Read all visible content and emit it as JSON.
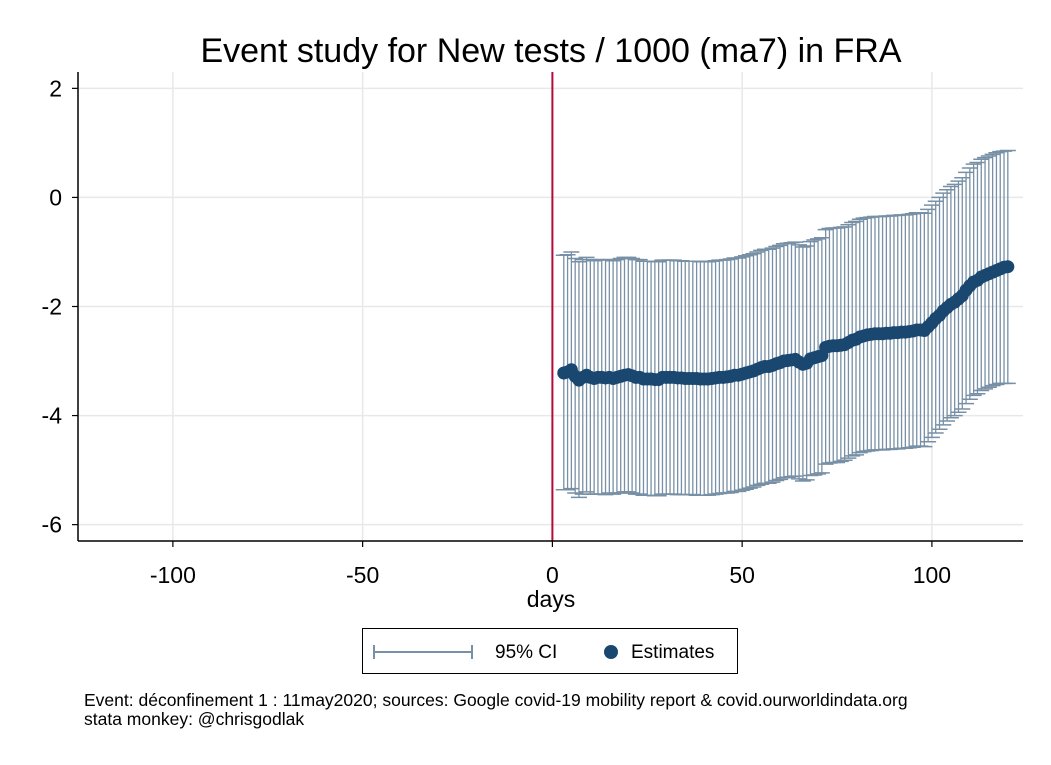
{
  "chart_data": {
    "type": "scatter",
    "title": "Event study for New tests / 1000 (ma7) in FRA",
    "xlabel": "days",
    "ylabel": "",
    "xlim": [
      -125,
      124
    ],
    "ylim": [
      -6.3,
      2.3
    ],
    "xticks": [
      -100,
      -50,
      0,
      50,
      100
    ],
    "yticks": [
      2,
      0,
      -2,
      -4,
      -6
    ],
    "grid": true,
    "event_line_x": 0,
    "event_line_color": "#b5093b",
    "series_colors": {
      "ci": "#7890a6",
      "estimates": "#1a476f"
    },
    "legend": {
      "position": "bottom",
      "entries": [
        "95% CI",
        "Estimates"
      ]
    },
    "series": [
      {
        "name": "Estimates",
        "x": [
          3,
          4,
          5,
          6,
          7,
          8,
          9,
          10,
          11,
          12,
          13,
          14,
          15,
          16,
          17,
          18,
          19,
          20,
          21,
          22,
          23,
          24,
          25,
          26,
          27,
          28,
          29,
          30,
          31,
          32,
          33,
          34,
          35,
          36,
          37,
          38,
          39,
          40,
          41,
          42,
          43,
          44,
          45,
          46,
          47,
          48,
          49,
          50,
          51,
          52,
          53,
          54,
          55,
          56,
          57,
          58,
          59,
          60,
          61,
          62,
          63,
          64,
          65,
          66,
          67,
          68,
          69,
          70,
          71,
          72,
          73,
          74,
          75,
          76,
          77,
          78,
          79,
          80,
          81,
          82,
          83,
          84,
          85,
          86,
          87,
          88,
          89,
          90,
          91,
          92,
          93,
          94,
          95,
          96,
          97,
          98,
          99,
          100,
          101,
          102,
          103,
          104,
          105,
          106,
          107,
          108,
          109,
          110,
          111,
          112,
          113,
          114,
          115,
          116,
          117,
          118,
          119,
          120
        ],
        "y": [
          -3.22,
          -3.2,
          -3.16,
          -3.28,
          -3.35,
          -3.3,
          -3.26,
          -3.3,
          -3.32,
          -3.3,
          -3.3,
          -3.31,
          -3.3,
          -3.32,
          -3.3,
          -3.28,
          -3.26,
          -3.25,
          -3.27,
          -3.3,
          -3.3,
          -3.33,
          -3.33,
          -3.33,
          -3.34,
          -3.34,
          -3.3,
          -3.3,
          -3.3,
          -3.3,
          -3.31,
          -3.31,
          -3.32,
          -3.32,
          -3.32,
          -3.32,
          -3.33,
          -3.33,
          -3.33,
          -3.32,
          -3.31,
          -3.3,
          -3.3,
          -3.29,
          -3.28,
          -3.26,
          -3.26,
          -3.24,
          -3.22,
          -3.2,
          -3.18,
          -3.15,
          -3.12,
          -3.1,
          -3.1,
          -3.08,
          -3.05,
          -3.03,
          -3.0,
          -2.99,
          -2.98,
          -2.97,
          -3.02,
          -3.06,
          -3.04,
          -2.96,
          -2.94,
          -2.92,
          -2.9,
          -2.75,
          -2.73,
          -2.72,
          -2.72,
          -2.71,
          -2.7,
          -2.66,
          -2.62,
          -2.6,
          -2.56,
          -2.54,
          -2.52,
          -2.51,
          -2.5,
          -2.5,
          -2.5,
          -2.49,
          -2.49,
          -2.48,
          -2.48,
          -2.47,
          -2.47,
          -2.46,
          -2.45,
          -2.43,
          -2.43,
          -2.44,
          -2.37,
          -2.3,
          -2.22,
          -2.16,
          -2.08,
          -2.02,
          -1.96,
          -1.92,
          -1.86,
          -1.8,
          -1.7,
          -1.62,
          -1.55,
          -1.52,
          -1.46,
          -1.43,
          -1.4,
          -1.37,
          -1.34,
          -1.31,
          -1.28,
          -1.27
        ]
      },
      {
        "name": "95% CI",
        "x": [
          3,
          4,
          5,
          6,
          7,
          8,
          9,
          10,
          11,
          12,
          13,
          14,
          15,
          16,
          17,
          18,
          19,
          20,
          21,
          22,
          23,
          24,
          25,
          26,
          27,
          28,
          29,
          30,
          31,
          32,
          33,
          34,
          35,
          36,
          37,
          38,
          39,
          40,
          41,
          42,
          43,
          44,
          45,
          46,
          47,
          48,
          49,
          50,
          51,
          52,
          53,
          54,
          55,
          56,
          57,
          58,
          59,
          60,
          61,
          62,
          63,
          64,
          65,
          66,
          67,
          68,
          69,
          70,
          71,
          72,
          73,
          74,
          75,
          76,
          77,
          78,
          79,
          80,
          81,
          82,
          83,
          84,
          85,
          86,
          87,
          88,
          89,
          90,
          91,
          92,
          93,
          94,
          95,
          96,
          97,
          98,
          99,
          100,
          101,
          102,
          103,
          104,
          105,
          106,
          107,
          108,
          109,
          110,
          111,
          112,
          113,
          114,
          115,
          116,
          117,
          118,
          119,
          120
        ],
        "lower": [
          -5.36,
          -5.36,
          -5.34,
          -5.42,
          -5.5,
          -5.44,
          -5.4,
          -5.44,
          -5.44,
          -5.44,
          -5.44,
          -5.45,
          -5.42,
          -5.44,
          -5.42,
          -5.42,
          -5.4,
          -5.4,
          -5.42,
          -5.44,
          -5.44,
          -5.46,
          -5.46,
          -5.46,
          -5.47,
          -5.47,
          -5.44,
          -5.44,
          -5.44,
          -5.44,
          -5.45,
          -5.45,
          -5.45,
          -5.45,
          -5.45,
          -5.46,
          -5.46,
          -5.46,
          -5.46,
          -5.45,
          -5.44,
          -5.43,
          -5.42,
          -5.42,
          -5.41,
          -5.39,
          -5.39,
          -5.37,
          -5.35,
          -5.33,
          -5.31,
          -5.28,
          -5.26,
          -5.24,
          -5.24,
          -5.22,
          -5.19,
          -5.17,
          -5.14,
          -5.13,
          -5.12,
          -5.11,
          -5.16,
          -5.2,
          -5.18,
          -5.1,
          -5.09,
          -5.07,
          -5.05,
          -4.89,
          -4.87,
          -4.86,
          -4.86,
          -4.84,
          -4.82,
          -4.78,
          -4.74,
          -4.72,
          -4.68,
          -4.66,
          -4.65,
          -4.64,
          -4.63,
          -4.63,
          -4.63,
          -4.62,
          -4.62,
          -4.61,
          -4.61,
          -4.6,
          -4.6,
          -4.59,
          -4.58,
          -4.56,
          -4.56,
          -4.57,
          -4.48,
          -4.4,
          -4.32,
          -4.25,
          -4.17,
          -4.1,
          -4.04,
          -4.0,
          -3.94,
          -3.88,
          -3.78,
          -3.7,
          -3.63,
          -3.6,
          -3.54,
          -3.51,
          -3.48,
          -3.45,
          -3.43,
          -3.41,
          -3.41,
          -3.41
        ],
        "upper": [
          -1.06,
          -1.05,
          -1.0,
          -1.12,
          -1.18,
          -1.14,
          -1.1,
          -1.14,
          -1.16,
          -1.14,
          -1.14,
          -1.15,
          -1.14,
          -1.16,
          -1.14,
          -1.12,
          -1.1,
          -1.1,
          -1.12,
          -1.14,
          -1.14,
          -1.17,
          -1.17,
          -1.17,
          -1.18,
          -1.18,
          -1.15,
          -1.15,
          -1.15,
          -1.15,
          -1.16,
          -1.16,
          -1.17,
          -1.17,
          -1.17,
          -1.17,
          -1.18,
          -1.18,
          -1.18,
          -1.17,
          -1.16,
          -1.15,
          -1.15,
          -1.14,
          -1.13,
          -1.11,
          -1.11,
          -1.09,
          -1.07,
          -1.05,
          -1.03,
          -1.0,
          -0.97,
          -0.95,
          -0.95,
          -0.93,
          -0.9,
          -0.88,
          -0.85,
          -0.84,
          -0.83,
          -0.82,
          -0.87,
          -0.91,
          -0.89,
          -0.81,
          -0.78,
          -0.76,
          -0.74,
          -0.59,
          -0.57,
          -0.56,
          -0.56,
          -0.55,
          -0.54,
          -0.5,
          -0.46,
          -0.44,
          -0.4,
          -0.38,
          -0.37,
          -0.36,
          -0.35,
          -0.35,
          -0.35,
          -0.34,
          -0.34,
          -0.33,
          -0.33,
          -0.32,
          -0.32,
          -0.31,
          -0.3,
          -0.28,
          -0.28,
          -0.29,
          -0.22,
          -0.14,
          -0.07,
          0.0,
          0.08,
          0.14,
          0.2,
          0.24,
          0.3,
          0.36,
          0.46,
          0.54,
          0.61,
          0.64,
          0.7,
          0.73,
          0.76,
          0.79,
          0.82,
          0.84,
          0.85,
          0.86
        ]
      }
    ],
    "notes": [
      "Event: déconfinement 1 : 11may2020; sources: Google covid-19 mobility report & covid.ourworldindata.org",
      "stata monkey: @chrisgodlak"
    ]
  }
}
